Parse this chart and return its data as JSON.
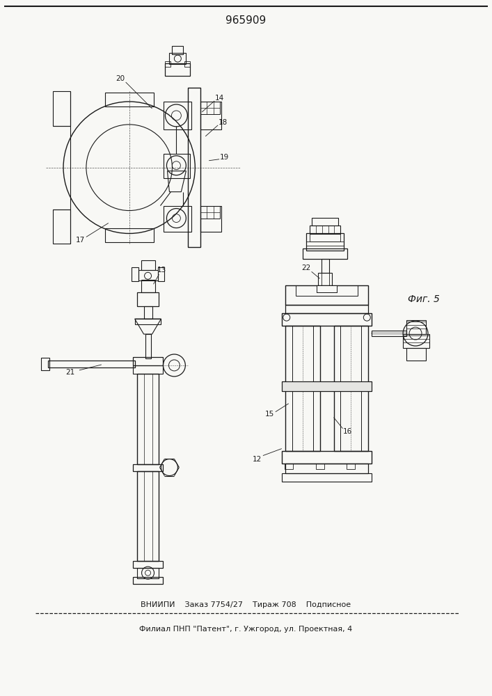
{
  "title": "965909",
  "bg_color": "#f8f8f5",
  "line_color": "#1a1a1a",
  "footer_line1": "ВНИИПИ    Заказ 7754/27    Тираж 708    Подписное",
  "footer_line2": "Филиал ПНП \"Патент\", г. Ужгород, ул. Проектная, 4",
  "fig_label": "Фиг. 5"
}
